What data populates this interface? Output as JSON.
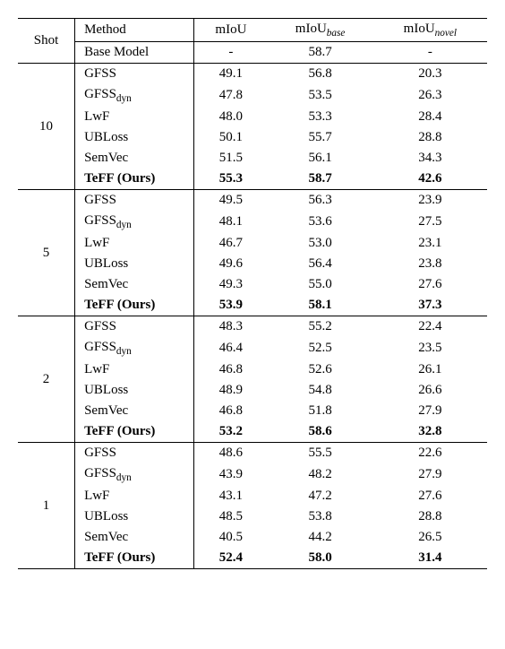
{
  "header": {
    "shot": "Shot",
    "method": "Method",
    "miou": "mIoU",
    "miou_base_pre": "mIoU",
    "miou_base_sub": "base",
    "miou_novel_pre": "mIoU",
    "miou_novel_sub": "novel"
  },
  "basemodel": {
    "label": "Base Model",
    "miou": "-",
    "base": "58.7",
    "novel": "-"
  },
  "groups": [
    {
      "shot": "10",
      "rows": [
        {
          "method": "GFSS",
          "sub": "",
          "miou": "49.1",
          "base": "56.8",
          "novel": "20.3",
          "bold": false
        },
        {
          "method": "GFSS",
          "sub": "dyn",
          "miou": "47.8",
          "base": "53.5",
          "novel": "26.3",
          "bold": false
        },
        {
          "method": "LwF",
          "sub": "",
          "miou": "48.0",
          "base": "53.3",
          "novel": "28.4",
          "bold": false
        },
        {
          "method": "UBLoss",
          "sub": "",
          "miou": "50.1",
          "base": "55.7",
          "novel": "28.8",
          "bold": false
        },
        {
          "method": "SemVec",
          "sub": "",
          "miou": "51.5",
          "base": "56.1",
          "novel": "34.3",
          "bold": false
        },
        {
          "method": "TeFF  (Ours)",
          "sub": "",
          "miou": "55.3",
          "base": "58.7",
          "novel": "42.6",
          "bold": true
        }
      ]
    },
    {
      "shot": "5",
      "rows": [
        {
          "method": "GFSS",
          "sub": "",
          "miou": "49.5",
          "base": "56.3",
          "novel": "23.9",
          "bold": false
        },
        {
          "method": "GFSS",
          "sub": "dyn",
          "miou": "48.1",
          "base": "53.6",
          "novel": "27.5",
          "bold": false
        },
        {
          "method": "LwF",
          "sub": "",
          "miou": "46.7",
          "base": "53.0",
          "novel": "23.1",
          "bold": false
        },
        {
          "method": "UBLoss",
          "sub": "",
          "miou": "49.6",
          "base": "56.4",
          "novel": "23.8",
          "bold": false
        },
        {
          "method": "SemVec",
          "sub": "",
          "miou": "49.3",
          "base": "55.0",
          "novel": "27.6",
          "bold": false
        },
        {
          "method": "TeFF  (Ours)",
          "sub": "",
          "miou": "53.9",
          "base": "58.1",
          "novel": "37.3",
          "bold": true
        }
      ]
    },
    {
      "shot": "2",
      "rows": [
        {
          "method": "GFSS",
          "sub": "",
          "miou": "48.3",
          "base": "55.2",
          "novel": "22.4",
          "bold": false
        },
        {
          "method": "GFSS",
          "sub": "dyn",
          "miou": "46.4",
          "base": "52.5",
          "novel": "23.5",
          "bold": false
        },
        {
          "method": "LwF",
          "sub": "",
          "miou": "46.8",
          "base": "52.6",
          "novel": "26.1",
          "bold": false
        },
        {
          "method": "UBLoss",
          "sub": "",
          "miou": "48.9",
          "base": "54.8",
          "novel": "26.6",
          "bold": false
        },
        {
          "method": "SemVec",
          "sub": "",
          "miou": "46.8",
          "base": "51.8",
          "novel": "27.9",
          "bold": false
        },
        {
          "method": "TeFF  (Ours)",
          "sub": "",
          "miou": "53.2",
          "base": "58.6",
          "novel": "32.8",
          "bold": true
        }
      ]
    },
    {
      "shot": "1",
      "rows": [
        {
          "method": "GFSS",
          "sub": "",
          "miou": "48.6",
          "base": "55.5",
          "novel": "22.6",
          "bold": false
        },
        {
          "method": "GFSS",
          "sub": "dyn",
          "miou": "43.9",
          "base": "48.2",
          "novel": "27.9",
          "bold": false
        },
        {
          "method": "LwF",
          "sub": "",
          "miou": "43.1",
          "base": "47.2",
          "novel": "27.6",
          "bold": false
        },
        {
          "method": "UBLoss",
          "sub": "",
          "miou": "48.5",
          "base": "53.8",
          "novel": "28.8",
          "bold": false
        },
        {
          "method": "SemVec",
          "sub": "",
          "miou": "40.5",
          "base": "44.2",
          "novel": "26.5",
          "bold": false
        },
        {
          "method": "TeFF  (Ours)",
          "sub": "",
          "miou": "52.4",
          "base": "58.0",
          "novel": "31.4",
          "bold": true
        }
      ]
    }
  ]
}
